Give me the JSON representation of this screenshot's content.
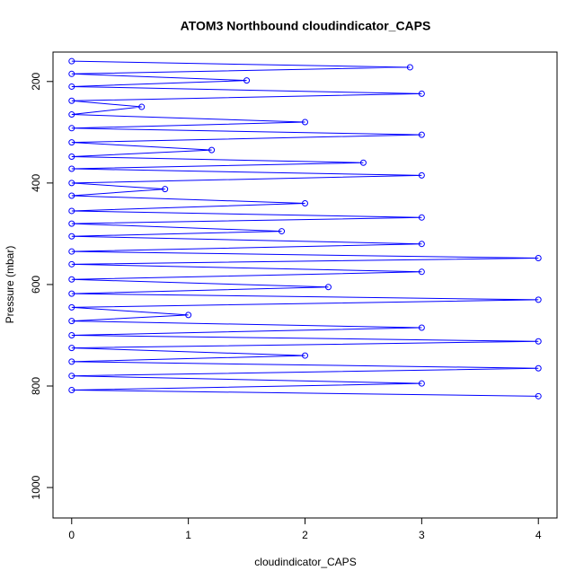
{
  "chart_data": {
    "type": "line",
    "title": "ATOM3 Northbound cloudindicator_CAPS",
    "x_label": "cloudindicator_CAPS",
    "y_label": "Pressure (mbar)",
    "x": [
      0,
      2.9,
      0,
      1.5,
      0,
      3,
      0,
      0.6,
      0,
      2,
      0,
      3,
      0,
      1.2,
      0,
      2.5,
      0,
      3,
      0,
      0.8,
      0,
      2,
      0,
      3,
      0,
      1.8,
      0,
      3,
      0,
      4,
      0,
      3,
      0,
      2.2,
      0,
      4,
      0,
      1,
      0,
      3,
      0,
      4,
      0,
      2,
      0,
      4,
      0,
      3,
      0,
      4
    ],
    "values": [
      160,
      172,
      185,
      198,
      210,
      224,
      238,
      250,
      265,
      280,
      292,
      305,
      320,
      335,
      348,
      360,
      372,
      385,
      400,
      412,
      425,
      440,
      455,
      468,
      480,
      495,
      505,
      520,
      535,
      548,
      560,
      575,
      590,
      605,
      618,
      630,
      645,
      660,
      672,
      685,
      700,
      712,
      725,
      740,
      752,
      765,
      780,
      795,
      808,
      820
    ],
    "color": "#0000ff",
    "xlim": [
      -0.16,
      4.16
    ],
    "xticks": [
      0,
      1,
      2,
      3,
      4
    ],
    "ylim": [
      1060,
      142
    ],
    "yticks": [
      200,
      400,
      600,
      800,
      1000
    ]
  }
}
